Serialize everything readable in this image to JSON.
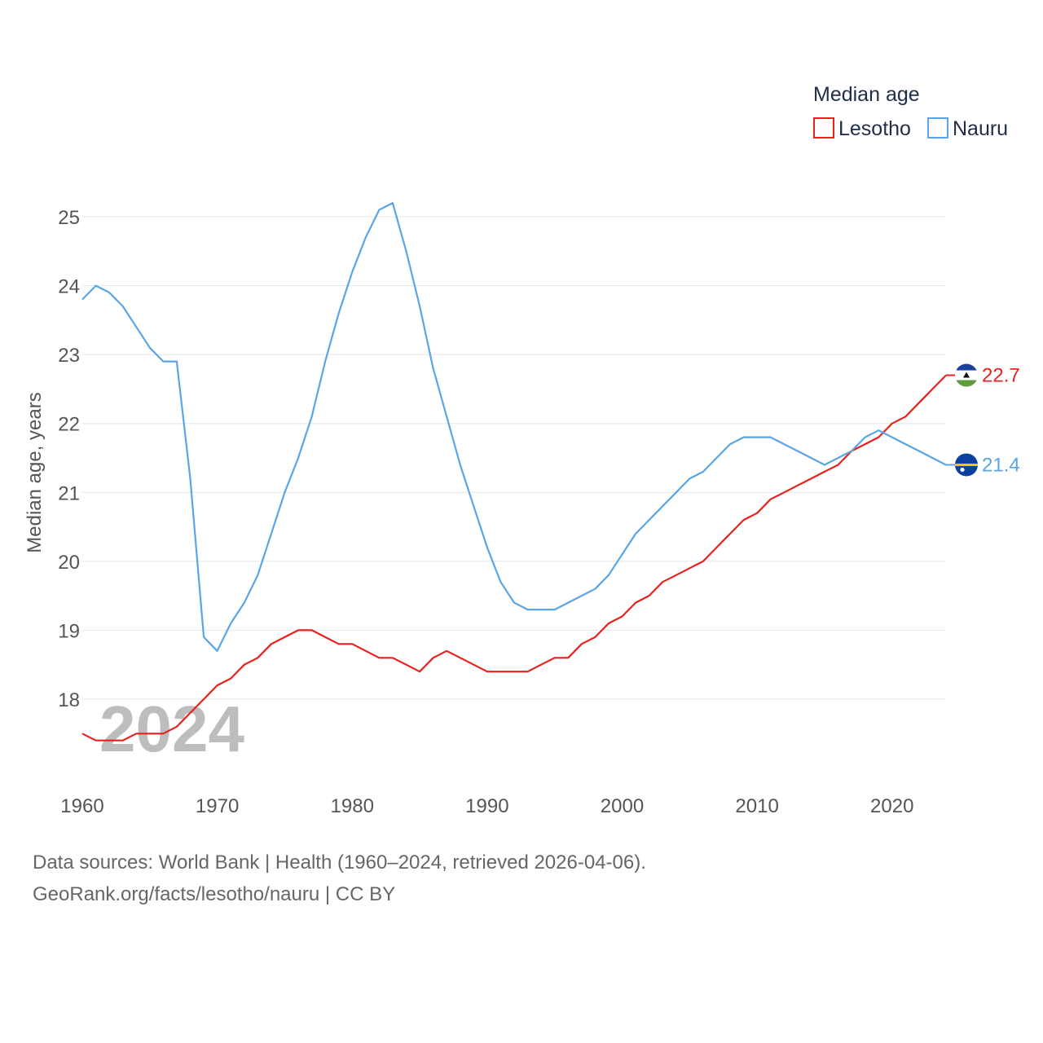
{
  "chart_data": {
    "type": "line",
    "title": "",
    "ylabel": "Median age, years",
    "xlabel": "",
    "xlim": [
      1960,
      2024
    ],
    "ylim": [
      17.0,
      25.4
    ],
    "yticks": [
      18,
      19,
      20,
      21,
      22,
      23,
      24,
      25
    ],
    "xticks": [
      1960,
      1970,
      1980,
      1990,
      2000,
      2010,
      2020
    ],
    "grid": true,
    "legend": {
      "title": "Median age",
      "placement": "top-right"
    },
    "watermark_year": "2024",
    "x": [
      1960,
      1961,
      1962,
      1963,
      1964,
      1965,
      1966,
      1967,
      1968,
      1969,
      1970,
      1971,
      1972,
      1973,
      1974,
      1975,
      1976,
      1977,
      1978,
      1979,
      1980,
      1981,
      1982,
      1983,
      1984,
      1985,
      1986,
      1987,
      1988,
      1989,
      1990,
      1991,
      1992,
      1993,
      1994,
      1995,
      1996,
      1997,
      1998,
      1999,
      2000,
      2001,
      2002,
      2003,
      2004,
      2005,
      2006,
      2007,
      2008,
      2009,
      2010,
      2011,
      2012,
      2013,
      2014,
      2015,
      2016,
      2017,
      2018,
      2019,
      2020,
      2021,
      2022,
      2023,
      2024
    ],
    "series": [
      {
        "name": "Lesotho",
        "color": "#e8211c",
        "end_label": "22.7",
        "flag_icon": "lesotho-flag-icon",
        "values": [
          17.5,
          17.4,
          17.4,
          17.4,
          17.5,
          17.5,
          17.5,
          17.6,
          17.8,
          18.0,
          18.2,
          18.3,
          18.5,
          18.6,
          18.8,
          18.9,
          19.0,
          19.0,
          18.9,
          18.8,
          18.8,
          18.7,
          18.6,
          18.6,
          18.5,
          18.4,
          18.6,
          18.7,
          18.6,
          18.5,
          18.4,
          18.4,
          18.4,
          18.4,
          18.5,
          18.6,
          18.6,
          18.8,
          18.9,
          19.1,
          19.2,
          19.4,
          19.5,
          19.7,
          19.8,
          19.9,
          20.0,
          20.2,
          20.4,
          20.6,
          20.7,
          20.9,
          21.0,
          21.1,
          21.2,
          21.3,
          21.4,
          21.6,
          21.7,
          21.8,
          22.0,
          22.1,
          22.3,
          22.5,
          22.7
        ]
      },
      {
        "name": "Nauru",
        "color": "#5aa5e6",
        "end_label": "21.4",
        "flag_icon": "nauru-flag-icon",
        "values": [
          23.8,
          24.0,
          23.9,
          23.7,
          23.4,
          23.1,
          22.9,
          22.9,
          21.2,
          18.9,
          18.7,
          19.1,
          19.4,
          19.8,
          20.4,
          21.0,
          21.5,
          22.1,
          22.9,
          23.6,
          24.2,
          24.7,
          25.1,
          25.2,
          24.5,
          23.7,
          22.8,
          22.1,
          21.4,
          20.8,
          20.2,
          19.7,
          19.4,
          19.3,
          19.3,
          19.3,
          19.4,
          19.5,
          19.6,
          19.8,
          20.1,
          20.4,
          20.6,
          20.8,
          21.0,
          21.2,
          21.3,
          21.5,
          21.7,
          21.8,
          21.8,
          21.8,
          21.7,
          21.6,
          21.5,
          21.4,
          21.5,
          21.6,
          21.8,
          21.9,
          21.8,
          21.7,
          21.6,
          21.5,
          21.4
        ]
      }
    ]
  },
  "footer": {
    "source_line": "Data sources: World Bank | Health (1960–2024, retrieved 2026-04-06).",
    "credit_line": "GeoRank.org/facts/lesotho/nauru | CC BY"
  }
}
